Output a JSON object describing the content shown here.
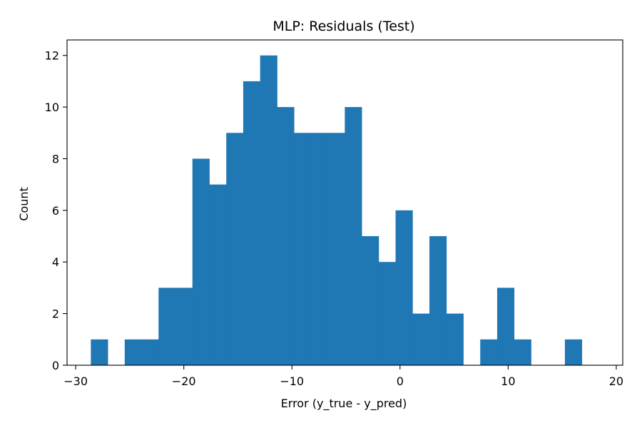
{
  "chart_data": {
    "type": "bar",
    "title": "MLP: Residuals (Test)",
    "xlabel": "Error (y_true - y_pred)",
    "ylabel": "Count",
    "xlim": [
      -30.8,
      20.6
    ],
    "ylim": [
      0,
      12.6
    ],
    "bin_width": 1.566,
    "bin_start": -28.6,
    "counts": [
      1,
      0,
      1,
      1,
      3,
      3,
      8,
      7,
      9,
      11,
      12,
      10,
      9,
      9,
      9,
      10,
      5,
      4,
      6,
      2,
      5,
      2,
      0,
      1,
      3,
      1,
      0,
      0,
      1
    ],
    "xticks": [
      -30,
      -20,
      -10,
      0,
      10,
      20
    ],
    "xtick_labels": [
      "−30",
      "−20",
      "−10",
      "0",
      "10",
      "20"
    ],
    "yticks": [
      0,
      2,
      4,
      6,
      8,
      10,
      12
    ],
    "ytick_labels": [
      "0",
      "2",
      "4",
      "6",
      "8",
      "10",
      "12"
    ],
    "bar_color": "#1f77b4",
    "grid": false
  }
}
